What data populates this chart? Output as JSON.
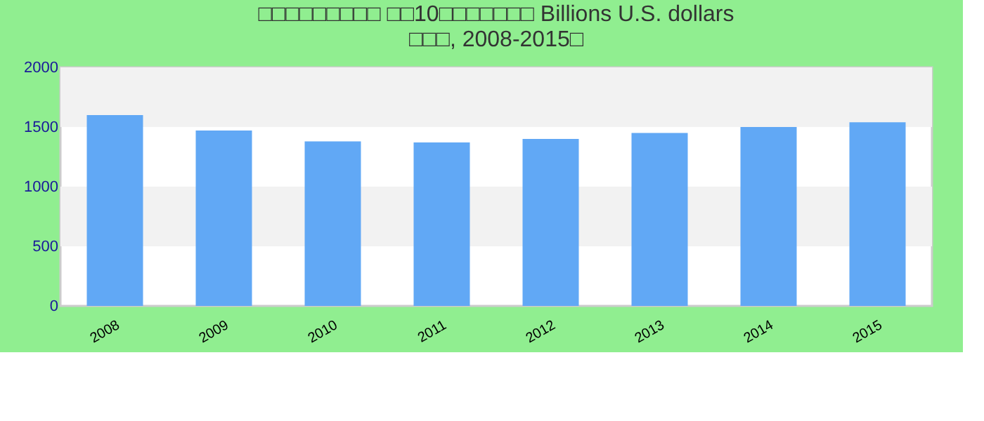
{
  "chart_data": {
    "type": "bar",
    "title": "□□□□□□□□□ □□10□□□□□□□ Billions U.S. dollars\n□□□, 2008-2015□",
    "categories": [
      "2008",
      "2009",
      "2010",
      "2011",
      "2012",
      "2013",
      "2014",
      "2015"
    ],
    "values": [
      1600,
      1470,
      1380,
      1370,
      1400,
      1450,
      1500,
      1540
    ],
    "color": "#61a8f5",
    "ylim": [
      0,
      2000
    ],
    "yticks": [
      0,
      500,
      1000,
      1500,
      2000
    ],
    "bands": [
      {
        "axis": "y",
        "from": 500,
        "to": 1000,
        "color": "#f2f2f2"
      },
      {
        "axis": "y",
        "from": 1500,
        "to": 2000,
        "color": "#f2f2f2"
      }
    ]
  }
}
